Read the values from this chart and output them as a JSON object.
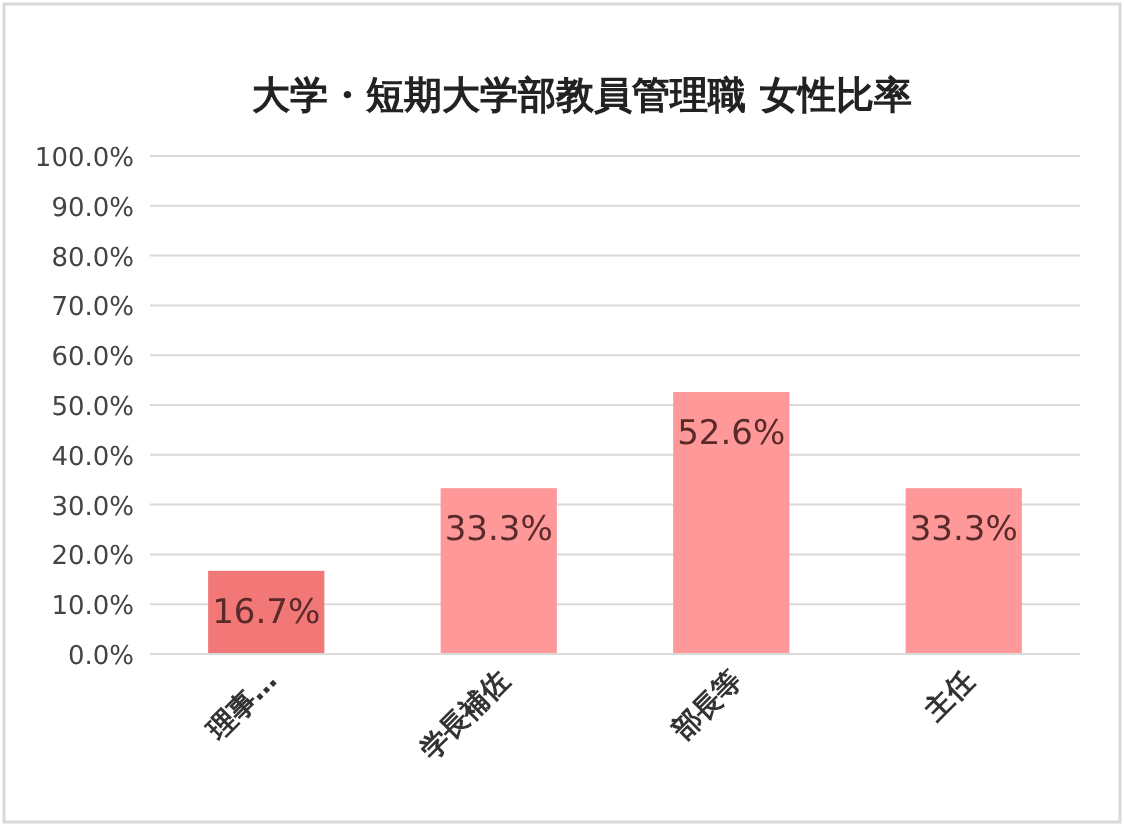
{
  "chart_data": {
    "type": "bar",
    "title": "大学・短期大学部教員管理職 女性比率",
    "categories": [
      "理事…",
      "学長補佐",
      "部長等",
      "主任"
    ],
    "values": [
      16.7,
      33.3,
      52.6,
      33.3
    ],
    "colors": [
      "#f27777",
      "#ff9999",
      "#ff9999",
      "#ff9999"
    ],
    "value_labels": [
      "16.7%",
      "33.3%",
      "52.6%",
      "33.3%"
    ],
    "ylim": [
      0,
      100
    ],
    "yticks": [
      {
        "value": 0,
        "label": "0.0%"
      },
      {
        "value": 10,
        "label": "10.0%"
      },
      {
        "value": 20,
        "label": "20.0%"
      },
      {
        "value": 30,
        "label": "30.0%"
      },
      {
        "value": 40,
        "label": "40.0%"
      },
      {
        "value": 50,
        "label": "50.0%"
      },
      {
        "value": 60,
        "label": "60.0%"
      },
      {
        "value": 70,
        "label": "70.0%"
      },
      {
        "value": 80,
        "label": "80.0%"
      },
      {
        "value": 90,
        "label": "90.0%"
      },
      {
        "value": 100,
        "label": "100.0%"
      }
    ],
    "grid": "y"
  }
}
